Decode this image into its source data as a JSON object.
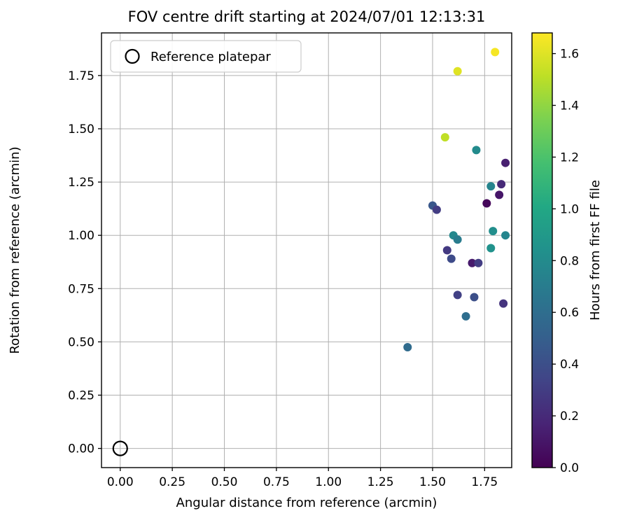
{
  "chart_data": {
    "type": "scatter",
    "title": "FOV centre drift starting at 2024/07/01 12:13:31",
    "xlabel": "Angular distance from reference (arcmin)",
    "ylabel": "Rotation from reference (arcmin)",
    "xlim": [
      -0.09,
      1.88
    ],
    "ylim": [
      -0.09,
      1.95
    ],
    "grid": true,
    "xtick_labels": [
      "0.00",
      "0.25",
      "0.50",
      "0.75",
      "1.00",
      "1.25",
      "1.50",
      "1.75"
    ],
    "ytick_labels": [
      "0.00",
      "0.25",
      "0.50",
      "0.75",
      "1.00",
      "1.25",
      "1.50",
      "1.75"
    ],
    "legend": {
      "label": "Reference platepar",
      "marker": "open-circle",
      "position": "upper-left"
    },
    "reference_point": {
      "x": 0.0,
      "y": 0.0
    },
    "series": [
      {
        "name": "FOV centre drift points",
        "points": [
          {
            "x": 1.62,
            "y": 1.77,
            "hours": 1.6
          },
          {
            "x": 1.8,
            "y": 1.86,
            "hours": 1.66
          },
          {
            "x": 1.56,
            "y": 1.46,
            "hours": 1.52
          },
          {
            "x": 1.71,
            "y": 1.4,
            "hours": 0.8
          },
          {
            "x": 1.85,
            "y": 1.34,
            "hours": 0.15
          },
          {
            "x": 1.78,
            "y": 1.23,
            "hours": 0.75
          },
          {
            "x": 1.83,
            "y": 1.24,
            "hours": 0.2
          },
          {
            "x": 1.82,
            "y": 1.19,
            "hours": 0.1
          },
          {
            "x": 1.76,
            "y": 1.15,
            "hours": 0.03
          },
          {
            "x": 1.5,
            "y": 1.14,
            "hours": 0.45
          },
          {
            "x": 1.52,
            "y": 1.12,
            "hours": 0.3
          },
          {
            "x": 1.6,
            "y": 1.0,
            "hours": 0.78
          },
          {
            "x": 1.62,
            "y": 0.98,
            "hours": 0.7
          },
          {
            "x": 1.79,
            "y": 1.02,
            "hours": 0.82
          },
          {
            "x": 1.85,
            "y": 1.0,
            "hours": 0.76
          },
          {
            "x": 1.78,
            "y": 0.94,
            "hours": 0.85
          },
          {
            "x": 1.57,
            "y": 0.93,
            "hours": 0.28
          },
          {
            "x": 1.59,
            "y": 0.89,
            "hours": 0.38
          },
          {
            "x": 1.69,
            "y": 0.87,
            "hours": 0.12
          },
          {
            "x": 1.72,
            "y": 0.87,
            "hours": 0.3
          },
          {
            "x": 1.62,
            "y": 0.72,
            "hours": 0.32
          },
          {
            "x": 1.7,
            "y": 0.71,
            "hours": 0.4
          },
          {
            "x": 1.66,
            "y": 0.62,
            "hours": 0.6
          },
          {
            "x": 1.84,
            "y": 0.68,
            "hours": 0.25
          },
          {
            "x": 1.38,
            "y": 0.475,
            "hours": 0.58
          }
        ]
      }
    ],
    "colorbar": {
      "label": "Hours from first FF file",
      "min": 0.0,
      "max": 1.68,
      "tick_labels": [
        "0.0",
        "0.2",
        "0.4",
        "0.6",
        "0.8",
        "1.0",
        "1.2",
        "1.4",
        "1.6"
      ],
      "colormap": "viridis",
      "viridis_stops": [
        "#440154",
        "#482475",
        "#414487",
        "#35608d",
        "#2a788e",
        "#21918c",
        "#22a884",
        "#44bf70",
        "#7ad151",
        "#bddf26",
        "#fde725"
      ]
    },
    "colors": {
      "grid": "#b0b0b0",
      "axes": "#000000",
      "background": "#ffffff",
      "legend_edge": "#cccccc"
    }
  }
}
